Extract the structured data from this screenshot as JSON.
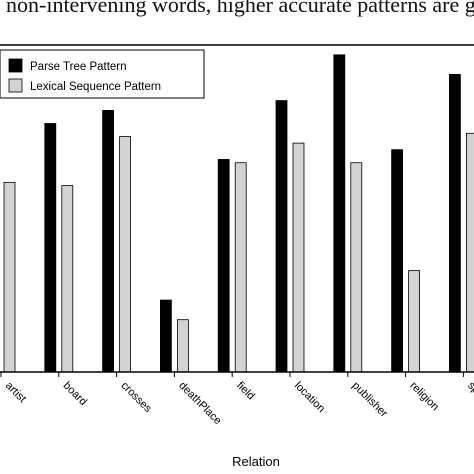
{
  "caption": "non-intervening words, higher accurate patterns are g",
  "colors": {
    "parse_tree": "#000000",
    "lexical_sequence": "#d3d3d3",
    "axis": "#000000"
  },
  "chart_data": {
    "type": "bar",
    "title": "",
    "xlabel": "Relation",
    "ylabel": "",
    "ylim": [
      0,
      100
    ],
    "grid": false,
    "legend": "top-left",
    "categories": [
      "artist",
      "board",
      "crosses",
      "deathPlace",
      "field",
      "location",
      "publisher",
      "religion",
      "spou"
    ],
    "series": [
      {
        "name": "Parse Tree Pattern",
        "values": [
          null,
          76,
          80,
          22,
          65,
          83,
          97,
          68,
          91
        ]
      },
      {
        "name": "Lexical Sequence Pattern",
        "values": [
          58,
          57,
          72,
          16,
          64,
          70,
          64,
          31,
          73
        ]
      }
    ]
  }
}
